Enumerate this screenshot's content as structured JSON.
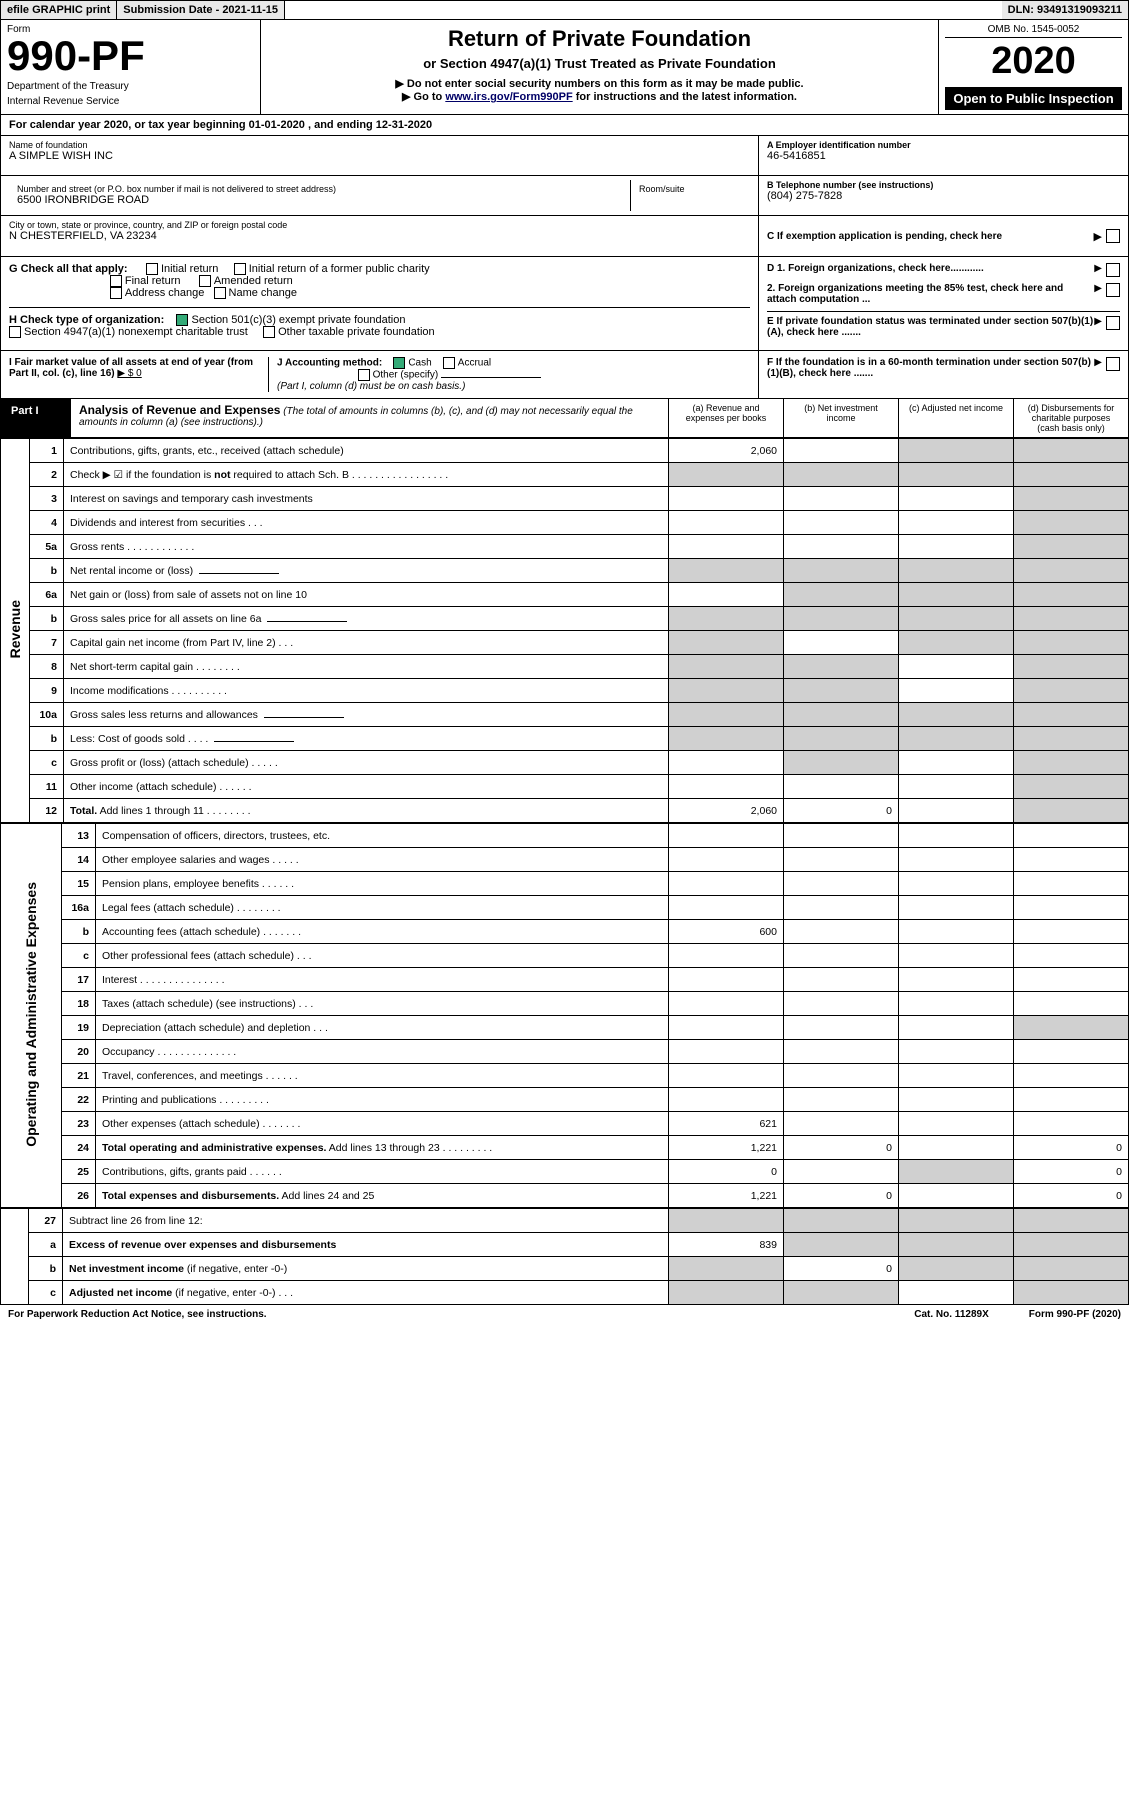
{
  "top": {
    "efile": "efile GRAPHIC print",
    "submission": "Submission Date - 2021-11-15",
    "dln": "DLN: 93491319093211"
  },
  "header": {
    "form_label": "Form",
    "form_number": "990-PF",
    "dept1": "Department of the Treasury",
    "dept2": "Internal Revenue Service",
    "title": "Return of Private Foundation",
    "subtitle": "or Section 4947(a)(1) Trust Treated as Private Foundation",
    "instr1": "▶ Do not enter social security numbers on this form as it may be made public.",
    "instr2_pre": "▶ Go to ",
    "instr2_link": "www.irs.gov/Form990PF",
    "instr2_post": " for instructions and the latest information.",
    "omb": "OMB No. 1545-0052",
    "year": "2020",
    "open": "Open to Public Inspection"
  },
  "cal_year": "For calendar year 2020, or tax year beginning 01-01-2020                          , and ending 12-31-2020",
  "info": {
    "name_label": "Name of foundation",
    "name": "A SIMPLE WISH INC",
    "addr_label": "Number and street (or P.O. box number if mail is not delivered to street address)",
    "addr": "6500 IRONBRIDGE ROAD",
    "room_label": "Room/suite",
    "city_label": "City or town, state or province, country, and ZIP or foreign postal code",
    "city": "N CHESTERFIELD, VA  23234",
    "ein_label": "A Employer identification number",
    "ein": "46-5416851",
    "tel_label": "B Telephone number (see instructions)",
    "tel": "(804) 275-7828",
    "c": "C If exemption application is pending, check here"
  },
  "g": {
    "label": "G Check all that apply:",
    "opts": [
      "Initial return",
      "Final return",
      "Address change",
      "Initial return of a former public charity",
      "Amended return",
      "Name change"
    ]
  },
  "h": {
    "label": "H Check type of organization:",
    "opt1": "Section 501(c)(3) exempt private foundation",
    "opt2": "Section 4947(a)(1) nonexempt charitable trust",
    "opt3": "Other taxable private foundation"
  },
  "i": {
    "label": "I Fair market value of all assets at end of year (from Part II, col. (c), line 16)",
    "val": "▶ $  0"
  },
  "j": {
    "label": "J Accounting method:",
    "cash": "Cash",
    "accrual": "Accrual",
    "other": "Other (specify)",
    "note": "(Part I, column (d) must be on cash basis.)"
  },
  "d_items": {
    "d1": "D 1. Foreign organizations, check here............",
    "d2": "2. Foreign organizations meeting the 85% test, check here and attach computation ...",
    "e": "E  If private foundation status was terminated under section 507(b)(1)(A), check here .......",
    "f": "F  If the foundation is in a 60-month termination under section 507(b)(1)(B), check here ......."
  },
  "part1": {
    "label": "Part I",
    "title": "Analysis of Revenue and Expenses",
    "note": "(The total of amounts in columns (b), (c), and (d) may not necessarily equal the amounts in column (a) (see instructions).)",
    "col_a": "(a)  Revenue and expenses per books",
    "col_b": "(b)  Net investment income",
    "col_c": "(c)  Adjusted net income",
    "col_d": "(d)  Disbursements for charitable purposes (cash basis only)"
  },
  "side": {
    "revenue": "Revenue",
    "expenses": "Operating and Administrative Expenses"
  },
  "lines": [
    {
      "n": "1",
      "d": "Contributions, gifts, grants, etc., received (attach schedule)",
      "a": "2,060",
      "c_shade": 1,
      "d_shade": 1
    },
    {
      "n": "2",
      "d": "Check ▶ ☑ if the foundation is <b>not</b> required to attach Sch. B   .  .  .  .  .  .  .  .  .  .  .  .  .  .  .  .  .",
      "all_shade": 1
    },
    {
      "n": "3",
      "d": "Interest on savings and temporary cash investments",
      "d_shade": 1
    },
    {
      "n": "4",
      "d": "Dividends and interest from securities    .   .   .",
      "d_shade": 1
    },
    {
      "n": "5a",
      "d": "Gross rents    .   .   .   .   .   .   .   .   .   .   .   .",
      "d_shade": 1
    },
    {
      "n": "b",
      "d": "Net rental income or (loss)",
      "all_shade": 1,
      "inline": 1
    },
    {
      "n": "6a",
      "d": "Net gain or (loss) from sale of assets not on line 10",
      "b_shade": 1,
      "c_shade": 1,
      "d_shade": 1
    },
    {
      "n": "b",
      "d": "Gross sales price for all assets on line 6a",
      "all_shade": 1,
      "inline": 1
    },
    {
      "n": "7",
      "d": "Capital gain net income (from Part IV, line 2)   .   .   .",
      "a_shade": 1,
      "c_shade": 1,
      "d_shade": 1
    },
    {
      "n": "8",
      "d": "Net short-term capital gain  .   .   .   .   .   .   .   .",
      "a_shade": 1,
      "b_shade": 1,
      "d_shade": 1
    },
    {
      "n": "9",
      "d": "Income modifications  .   .   .   .   .   .   .   .   .   .",
      "a_shade": 1,
      "b_shade": 1,
      "d_shade": 1
    },
    {
      "n": "10a",
      "d": "Gross sales less returns and allowances",
      "all_shade": 1,
      "inline": 1
    },
    {
      "n": "b",
      "d": "Less: Cost of goods sold   .   .   .   .",
      "all_shade": 1,
      "inline": 1
    },
    {
      "n": "c",
      "d": "Gross profit or (loss) (attach schedule)    .   .   .   .   .",
      "b_shade": 1,
      "d_shade": 1
    },
    {
      "n": "11",
      "d": "Other income (attach schedule)   .   .   .   .   .   .",
      "d_shade": 1
    },
    {
      "n": "12",
      "d": "<b>Total.</b> Add lines 1 through 11   .   .   .   .   .   .   .   .",
      "a": "2,060",
      "b": "0",
      "d_shade": 1
    }
  ],
  "exp_lines": [
    {
      "n": "13",
      "d": "Compensation of officers, directors, trustees, etc."
    },
    {
      "n": "14",
      "d": "Other employee salaries and wages   .   .   .   .   ."
    },
    {
      "n": "15",
      "d": "Pension plans, employee benefits  .   .   .   .   .   ."
    },
    {
      "n": "16a",
      "d": "Legal fees (attach schedule)  .   .   .   .   .   .   .   ."
    },
    {
      "n": "b",
      "d": "Accounting fees (attach schedule)  .   .   .   .   .   .   .",
      "a": "600"
    },
    {
      "n": "c",
      "d": "Other professional fees (attach schedule)   .   .   ."
    },
    {
      "n": "17",
      "d": "Interest  .   .   .   .   .   .   .   .   .   .   .   .   .   .   ."
    },
    {
      "n": "18",
      "d": "Taxes (attach schedule) (see instructions)   .   .   ."
    },
    {
      "n": "19",
      "d": "Depreciation (attach schedule) and depletion   .   .   .",
      "d_shade": 1
    },
    {
      "n": "20",
      "d": "Occupancy  .   .   .   .   .   .   .   .   .   .   .   .   .   ."
    },
    {
      "n": "21",
      "d": "Travel, conferences, and meetings  .   .   .   .   .   ."
    },
    {
      "n": "22",
      "d": "Printing and publications  .   .   .   .   .   .   .   .   ."
    },
    {
      "n": "23",
      "d": "Other expenses (attach schedule)  .   .   .   .   .   .   .",
      "a": "621"
    },
    {
      "n": "24",
      "d": "<b>Total operating and administrative expenses.</b> Add lines 13 through 23   .   .   .   .   .   .   .   .   .",
      "a": "1,221",
      "b": "0",
      "dd": "0"
    },
    {
      "n": "25",
      "d": "Contributions, gifts, grants paid    .   .   .   .   .   .",
      "a": "0",
      "c_shade": 1,
      "dd": "0"
    },
    {
      "n": "26",
      "d": "<b>Total expenses and disbursements.</b> Add lines 24 and 25",
      "a": "1,221",
      "b": "0",
      "dd": "0"
    }
  ],
  "final_lines": [
    {
      "n": "27",
      "d": "Subtract line 26 from line 12:",
      "all_shade": 1
    },
    {
      "n": "a",
      "d": "<b>Excess of revenue over expenses and disbursements</b>",
      "a": "839",
      "b_shade": 1,
      "c_shade": 1,
      "d_shade": 1
    },
    {
      "n": "b",
      "d": "<b>Net investment income</b> (if negative, enter -0-)",
      "a_shade": 1,
      "b": "0",
      "c_shade": 1,
      "d_shade": 1
    },
    {
      "n": "c",
      "d": "<b>Adjusted net income</b> (if negative, enter -0-)  .   .   .",
      "a_shade": 1,
      "b_shade": 1,
      "d_shade": 1
    }
  ],
  "footer": {
    "left": "For Paperwork Reduction Act Notice, see instructions.",
    "mid": "Cat. No. 11289X",
    "right": "Form 990-PF (2020)"
  }
}
